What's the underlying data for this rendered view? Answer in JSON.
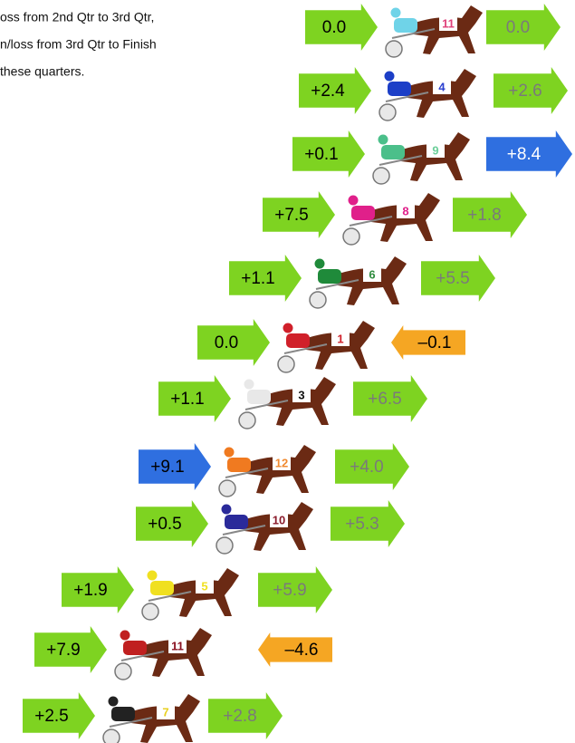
{
  "header": {
    "lines": [
      "oss from 2nd Qtr to 3rd Qtr,",
      "n/loss from 3rd Qtr to Finish",
      "these quarters."
    ]
  },
  "rows": [
    {
      "left": {
        "label": "0.0",
        "color": "#7ed321",
        "text_color": "#000000"
      },
      "horse": {
        "number": "11",
        "silk": "#6fd3e8",
        "number_color": "#e0407a"
      },
      "right": {
        "label": "0.0",
        "color": "#7ed321",
        "text_color": "#7a7a7a"
      }
    },
    {
      "left": {
        "label": "+2.4",
        "color": "#7ed321",
        "text_color": "#000000"
      },
      "horse": {
        "number": "4",
        "silk": "#1c3fc7",
        "number_color": "#2a3fcf"
      },
      "right": {
        "label": "+2.6",
        "color": "#7ed321",
        "text_color": "#7a7a7a"
      }
    },
    {
      "left": {
        "label": "+0.1",
        "color": "#7ed321",
        "text_color": "#000000"
      },
      "horse": {
        "number": "9",
        "silk": "#4bbf8a",
        "number_color": "#6ccf9a"
      },
      "right": {
        "label": "+8.4",
        "color": "#2f6fe0",
        "text_color": "#ffffff"
      }
    },
    {
      "left": {
        "label": "+7.5",
        "color": "#7ed321",
        "text_color": "#000000"
      },
      "horse": {
        "number": "8",
        "silk": "#e0208a",
        "number_color": "#e0208a"
      },
      "right": {
        "label": "+1.8",
        "color": "#7ed321",
        "text_color": "#7a7a7a"
      }
    },
    {
      "left": {
        "label": "+1.1",
        "color": "#7ed321",
        "text_color": "#000000"
      },
      "horse": {
        "number": "6",
        "silk": "#1f8a3a",
        "number_color": "#2e8b3e"
      },
      "right": {
        "label": "+5.5",
        "color": "#7ed321",
        "text_color": "#7a7a7a"
      }
    },
    {
      "left": {
        "label": "0.0",
        "color": "#7ed321",
        "text_color": "#000000"
      },
      "horse": {
        "number": "1",
        "silk": "#d0202a",
        "number_color": "#d0202a"
      },
      "right": {
        "label": "–0.1",
        "color": "#f5a623",
        "text_color": "#000000"
      }
    },
    {
      "left": {
        "label": "+1.1",
        "color": "#7ed321",
        "text_color": "#000000"
      },
      "horse": {
        "number": "3",
        "silk": "#e8e8e8",
        "number_color": "#111111"
      },
      "right": {
        "label": "+6.5",
        "color": "#7ed321",
        "text_color": "#7a7a7a"
      }
    },
    {
      "left": {
        "label": "+9.1",
        "color": "#2f6fe0",
        "text_color": "#000000"
      },
      "horse": {
        "number": "12",
        "silk": "#f07a20",
        "number_color": "#f08a30"
      },
      "right": {
        "label": "+4.0",
        "color": "#7ed321",
        "text_color": "#7a7a7a"
      }
    },
    {
      "left": {
        "label": "+0.5",
        "color": "#7ed321",
        "text_color": "#000000"
      },
      "horse": {
        "number": "10",
        "silk": "#2a2a9a",
        "number_color": "#8a1a2a"
      },
      "right": {
        "label": "+5.3",
        "color": "#7ed321",
        "text_color": "#7a7a7a"
      }
    },
    {
      "left": {
        "label": "+1.9",
        "color": "#7ed321",
        "text_color": "#000000"
      },
      "horse": {
        "number": "5",
        "silk": "#f0e020",
        "number_color": "#f0e020"
      },
      "right": {
        "label": "+5.9",
        "color": "#7ed321",
        "text_color": "#7a7a7a"
      }
    },
    {
      "left": {
        "label": "+7.9",
        "color": "#7ed321",
        "text_color": "#000000"
      },
      "horse": {
        "number": "11",
        "silk": "#c02020",
        "number_color": "#8a1020"
      },
      "right": {
        "label": "–4.6",
        "color": "#f5a623",
        "text_color": "#000000"
      }
    },
    {
      "left": {
        "label": "+2.5",
        "color": "#7ed321",
        "text_color": "#000000"
      },
      "horse": {
        "number": "7",
        "silk": "#222222",
        "number_color": "#e8d020"
      },
      "right": {
        "label": "+2.8",
        "color": "#7ed321",
        "text_color": "#7a7a7a"
      }
    }
  ]
}
